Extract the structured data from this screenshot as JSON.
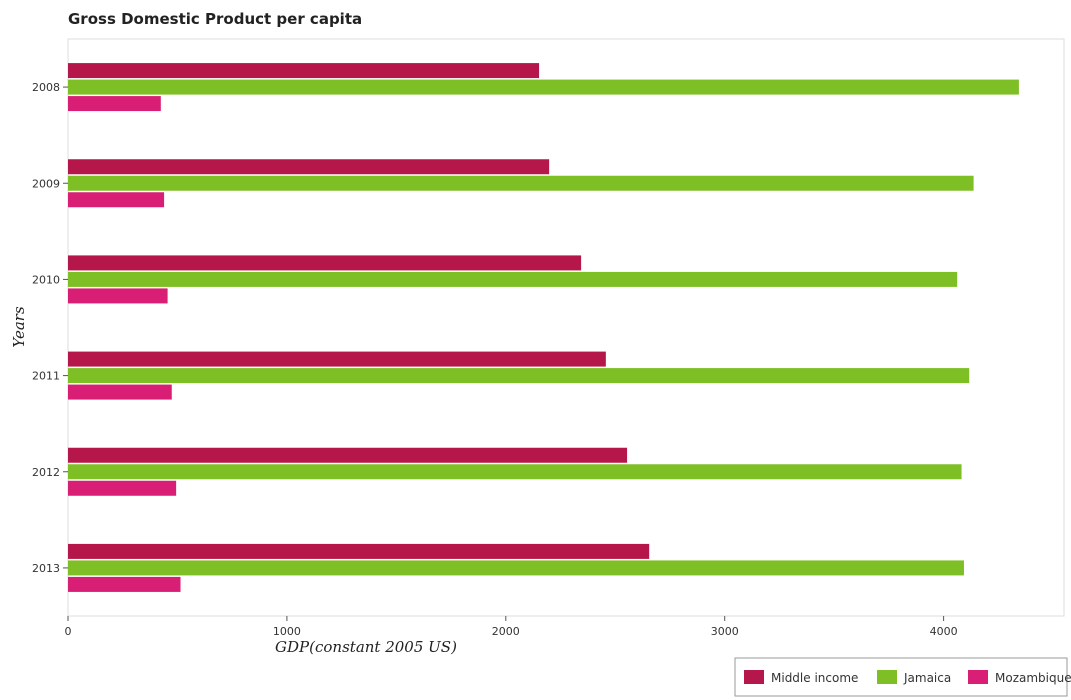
{
  "chart_data": {
    "type": "bar",
    "orientation": "horizontal",
    "title": "Gross Domestic Product per capita",
    "xlabel": "GDP(constant 2005 US)",
    "ylabel": "Years",
    "categories": [
      "2008",
      "2009",
      "2010",
      "2011",
      "2012",
      "2013"
    ],
    "xlim": [
      0,
      4550
    ],
    "xticks": [
      0,
      1000,
      2000,
      3000,
      4000
    ],
    "xtick_labels": [
      "0",
      "1000",
      "2000",
      "3000",
      "4000"
    ],
    "grid": false,
    "legend_position": "bottom-right",
    "series": [
      {
        "name": "Middle income",
        "color": "#b5174b",
        "values": [
          2152,
          2198,
          2344,
          2457,
          2554,
          2655
        ]
      },
      {
        "name": "Jamaica",
        "color": "#7fbf26",
        "values": [
          4344,
          4137,
          4062,
          4117,
          4082,
          4093
        ]
      },
      {
        "name": "Mozambique",
        "color": "#d81f75",
        "values": [
          424,
          439,
          455,
          474,
          494,
          514
        ]
      }
    ]
  }
}
